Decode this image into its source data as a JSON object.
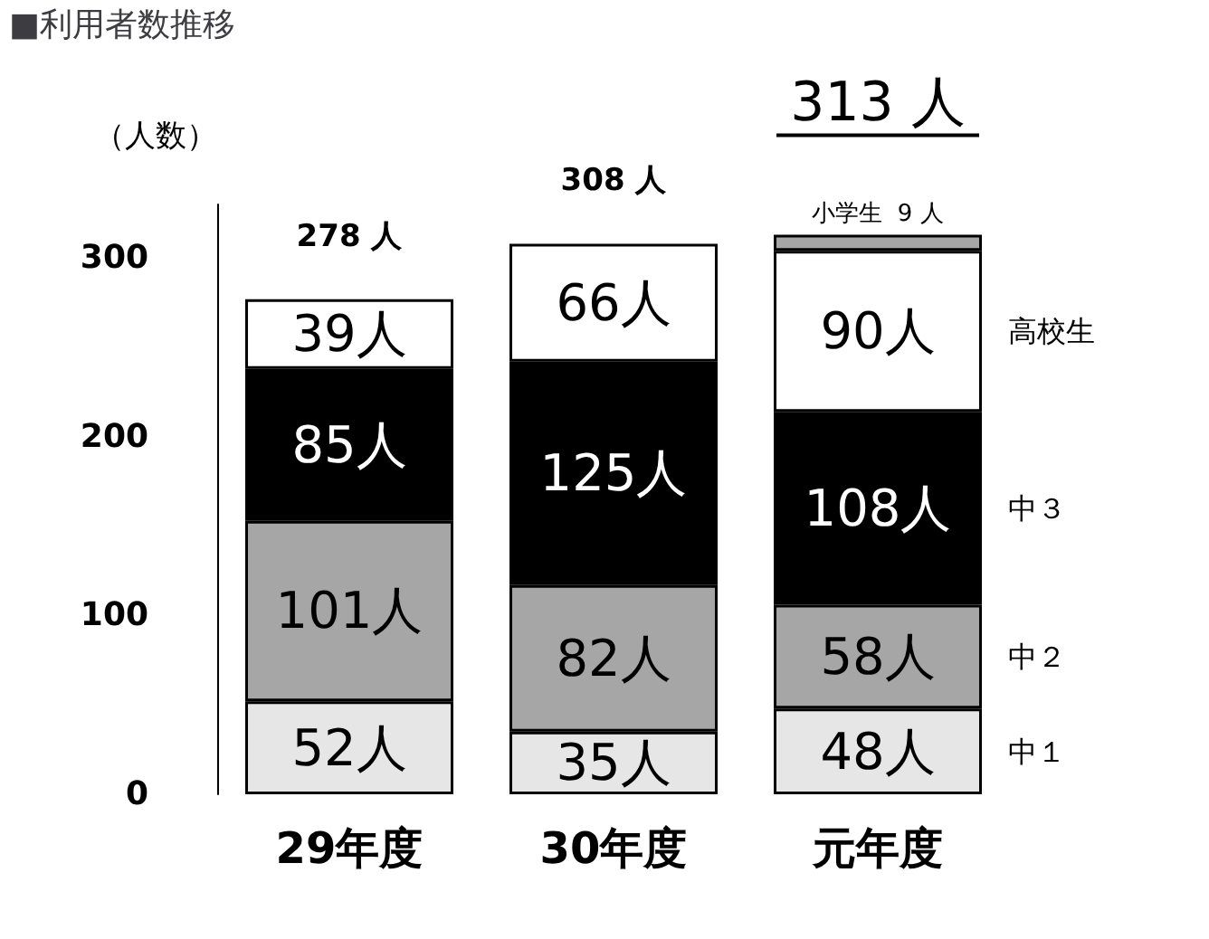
{
  "chart_data": {
    "type": "bar",
    "title": "■利用者数推移",
    "ylabel": "（人数）",
    "categories": [
      "29年度",
      "30年度",
      "元年度"
    ],
    "stacked": true,
    "legend": false,
    "grid": false,
    "series": [
      {
        "name": "中１",
        "color": "#e6e6e6",
        "values": [
          52,
          35,
          48
        ],
        "value_labels": [
          "52人",
          "35人",
          "48人"
        ]
      },
      {
        "name": "中２",
        "color": "#a6a6a6",
        "values": [
          101,
          82,
          58
        ],
        "value_labels": [
          "101人",
          "82人",
          "58人"
        ]
      },
      {
        "name": "中３",
        "color": "#000000",
        "values": [
          85,
          125,
          108
        ],
        "value_labels": [
          "85人",
          "125人",
          "108人"
        ]
      },
      {
        "name": "高校生",
        "color": "#ffffff",
        "values": [
          39,
          66,
          90
        ],
        "value_labels": [
          "39人",
          "66人",
          "90人"
        ]
      },
      {
        "name": "小学生",
        "color": "#a6a6a6",
        "values": [
          null,
          null,
          9
        ],
        "value_labels": [
          null,
          null,
          "9 人"
        ]
      }
    ],
    "totals": [
      "278 人",
      "308 人",
      "313 人"
    ],
    "ylim": [
      0,
      330
    ],
    "yticks": [
      0,
      100,
      200,
      300
    ]
  }
}
